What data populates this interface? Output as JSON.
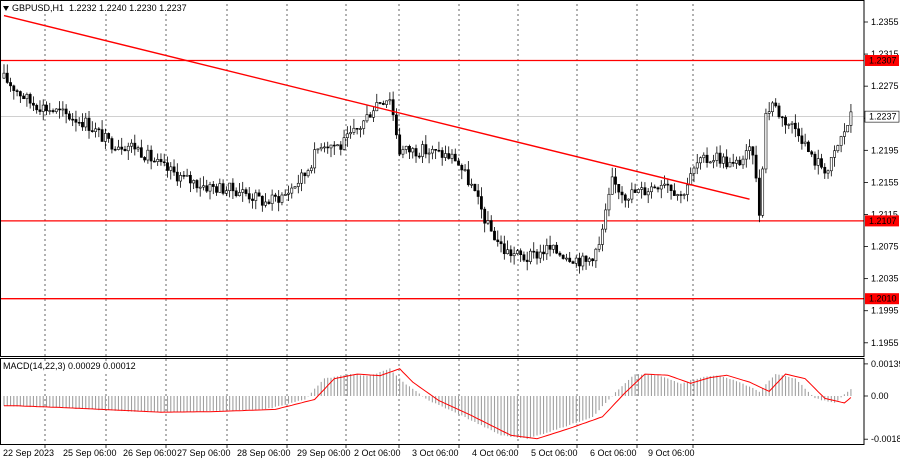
{
  "header": {
    "symbol": "GBPUSD,H1",
    "ohlc": "1.2232 1.2240 1.2230 1.2237",
    "indicator": "MACD(14,22,3) 0.00029 0.00012"
  },
  "colors": {
    "background": "#ffffff",
    "grid": "#000000",
    "candle": "#000000",
    "level": "#ff0000",
    "trendline": "#ff0000",
    "price_label_bg": "#ff0000",
    "price_label_fg": "#ffffff",
    "macd_hist": "#a0a0a0",
    "macd_signal": "#ff0000"
  },
  "chart_data": {
    "type": "candlestick",
    "symbol": "GBPUSD",
    "timeframe": "H1",
    "price_ticks": [
      "1.2355",
      "1.2315",
      "1.2275",
      "1.2235",
      "1.2195",
      "1.2155",
      "1.2115",
      "1.2075",
      "1.2035",
      "1.1995",
      "1.1955"
    ],
    "horizontal_levels": [
      {
        "price": 1.2307,
        "label": "1.2307"
      },
      {
        "price": 1.2107,
        "label": "1.2107"
      },
      {
        "price": 1.201,
        "label": "1.2010"
      }
    ],
    "current_price": {
      "price": 1.2237,
      "label": "1.2237"
    },
    "trendline": {
      "start": {
        "bar": 0,
        "price": 1.2363
      },
      "end": {
        "bar": 228,
        "price": 1.2134
      }
    },
    "date_labels": [
      "22 Sep 2023",
      "25 Sep 06:00",
      "26 Sep 06:00",
      "27 Sep 06:00",
      "28 Sep 06:00",
      "29 Sep 06:00",
      "2 Oct 06:00",
      "3 Oct 06:00",
      "4 Oct 06:00",
      "5 Oct 06:00",
      "6 Oct 06:00",
      "9 Oct 06:00"
    ],
    "close_anchors": [
      [
        0,
        1.2285
      ],
      [
        8,
        1.2255
      ],
      [
        15,
        1.2245
      ],
      [
        25,
        1.223
      ],
      [
        32,
        1.2205
      ],
      [
        40,
        1.22
      ],
      [
        48,
        1.2175
      ],
      [
        55,
        1.216
      ],
      [
        62,
        1.215
      ],
      [
        72,
        1.2145
      ],
      [
        80,
        1.213
      ],
      [
        86,
        1.214
      ],
      [
        92,
        1.2165
      ],
      [
        97,
        1.2205
      ],
      [
        103,
        1.22
      ],
      [
        109,
        1.2225
      ],
      [
        114,
        1.2255
      ],
      [
        118,
        1.2262
      ],
      [
        121,
        1.2195
      ],
      [
        128,
        1.2195
      ],
      [
        134,
        1.219
      ],
      [
        138,
        1.2185
      ],
      [
        143,
        1.215
      ],
      [
        148,
        1.21
      ],
      [
        153,
        1.207
      ],
      [
        160,
        1.206
      ],
      [
        166,
        1.2072
      ],
      [
        172,
        1.2065
      ],
      [
        178,
        1.2055
      ],
      [
        182,
        1.2075
      ],
      [
        186,
        1.2155
      ],
      [
        190,
        1.214
      ],
      [
        196,
        1.2145
      ],
      [
        202,
        1.2158
      ],
      [
        207,
        1.2138
      ],
      [
        212,
        1.2178
      ],
      [
        218,
        1.2188
      ],
      [
        223,
        1.2175
      ],
      [
        229,
        1.2195
      ],
      [
        231,
        1.2118
      ],
      [
        233,
        1.224
      ],
      [
        235,
        1.2255
      ],
      [
        238,
        1.2235
      ],
      [
        243,
        1.222
      ],
      [
        247,
        1.2185
      ],
      [
        252,
        1.217
      ],
      [
        256,
        1.221
      ],
      [
        259,
        1.2237
      ]
    ],
    "macd_ticks": [
      "0.00139",
      "0.00",
      "-0.00187"
    ],
    "macd_anchors": [
      [
        0,
        -0.00042
      ],
      [
        15,
        -0.0005
      ],
      [
        30,
        -0.0006
      ],
      [
        45,
        -0.0007
      ],
      [
        60,
        -0.00068
      ],
      [
        80,
        -0.00058
      ],
      [
        92,
        -0.00015
      ],
      [
        98,
        0.00075
      ],
      [
        105,
        0.00095
      ],
      [
        112,
        0.00088
      ],
      [
        118,
        0.00118
      ],
      [
        122,
        0.0006
      ],
      [
        130,
        -0.0002
      ],
      [
        140,
        -0.00085
      ],
      [
        152,
        -0.0017
      ],
      [
        160,
        -0.00185
      ],
      [
        170,
        -0.0014
      ],
      [
        180,
        -0.0009
      ],
      [
        187,
        0.00015
      ],
      [
        193,
        0.00095
      ],
      [
        200,
        0.0009
      ],
      [
        207,
        0.00055
      ],
      [
        213,
        0.0008
      ],
      [
        218,
        0.0009
      ],
      [
        225,
        0.0006
      ],
      [
        231,
        0.0002
      ],
      [
        236,
        0.00095
      ],
      [
        242,
        0.00075
      ],
      [
        248,
        -0.0001
      ],
      [
        254,
        -0.0003
      ],
      [
        259,
        0.00029
      ]
    ]
  }
}
